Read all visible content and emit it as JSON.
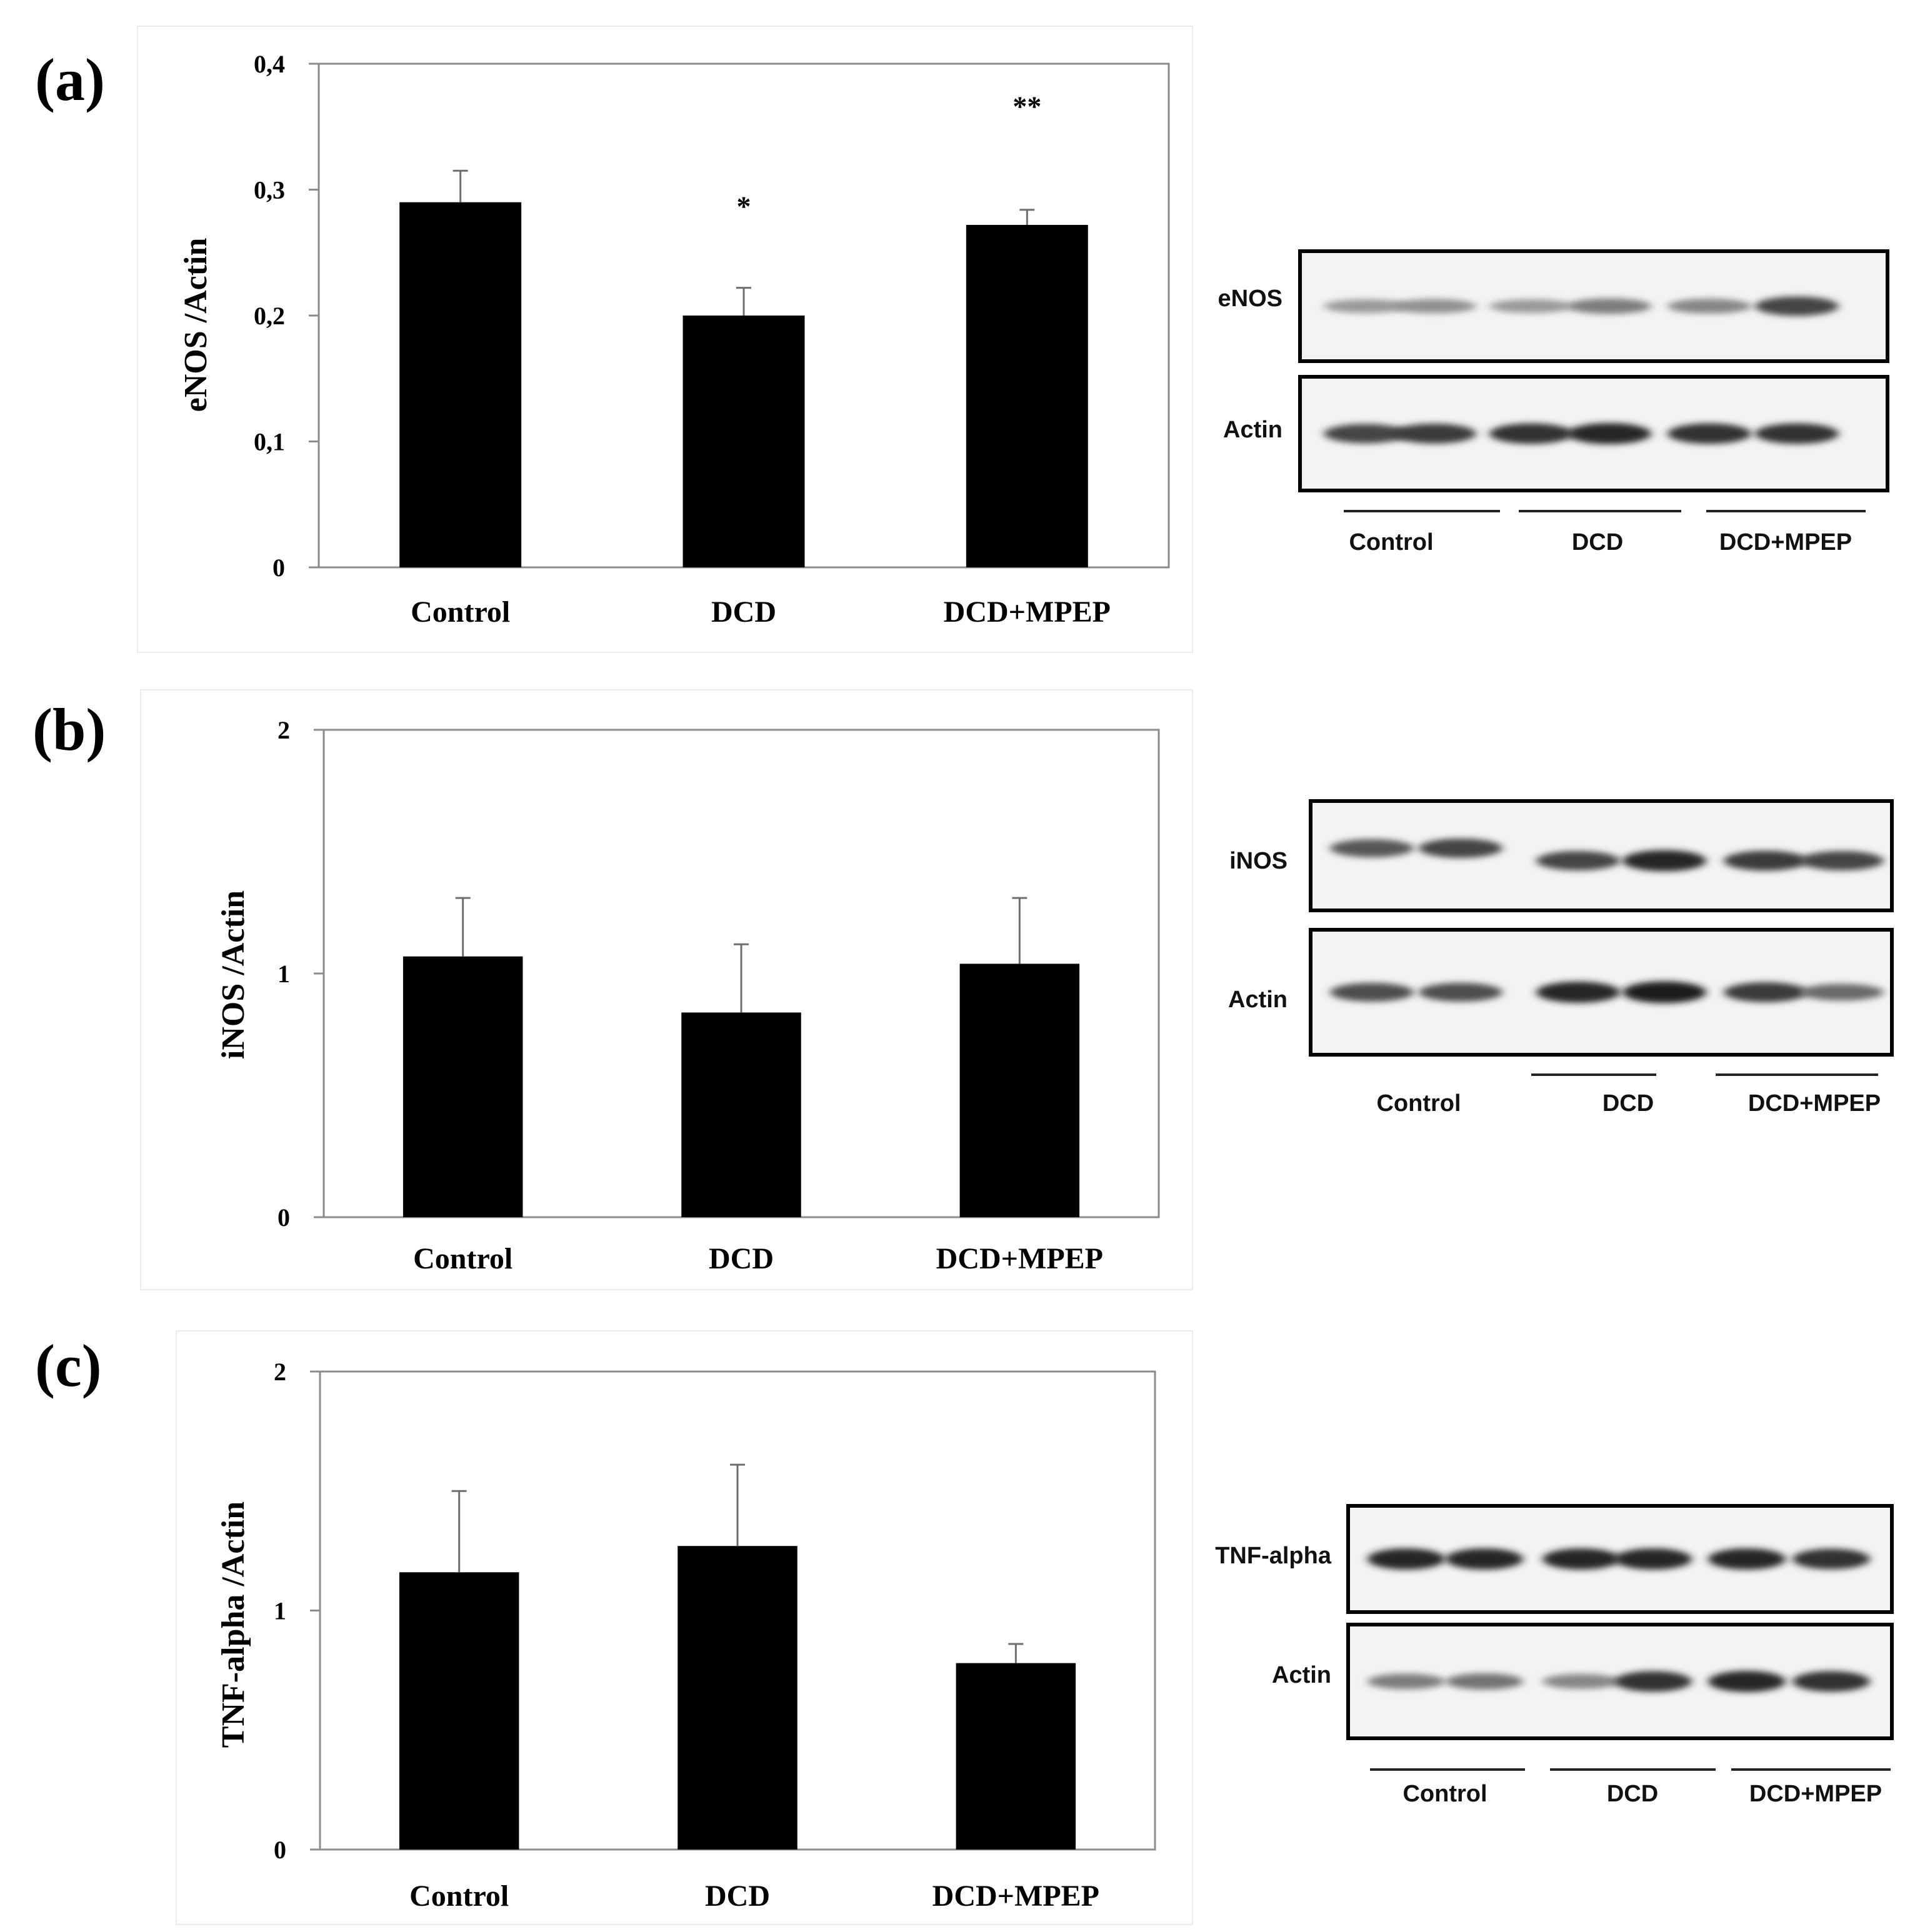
{
  "chart_data": [
    {
      "type": "bar",
      "panel": "(a)",
      "categories": [
        "Control",
        "DCD",
        "DCD+MPEP"
      ],
      "values": [
        0.29,
        0.2,
        0.272
      ],
      "errors": [
        0.025,
        0.022,
        0.012
      ],
      "significance": [
        "",
        "*",
        "**"
      ],
      "ylabel": "eNOS /Actin",
      "ylim": [
        0,
        0.4
      ],
      "yticks": [
        "0",
        "0,1",
        "0,2",
        "0,3",
        "0,4"
      ],
      "bar_color": "#000000",
      "blot": {
        "rows": [
          "eNOS",
          "Actin"
        ],
        "groups": [
          "Control",
          "DCD",
          "DCD+MPEP"
        ],
        "lane_intensity": [
          [
            0.3,
            0.35,
            0.3,
            0.45,
            0.4,
            0.75
          ],
          [
            0.75,
            0.8,
            0.85,
            0.9,
            0.85,
            0.85
          ]
        ]
      }
    },
    {
      "type": "bar",
      "panel": "(b)",
      "categories": [
        "Control",
        "DCD",
        "DCD+MPEP"
      ],
      "values": [
        1.07,
        0.84,
        1.04
      ],
      "errors": [
        0.24,
        0.28,
        0.27
      ],
      "significance": [
        "",
        "",
        ""
      ],
      "ylabel": "iNOS /Actin",
      "ylim": [
        0,
        2
      ],
      "yticks": [
        "0",
        "1",
        "2"
      ],
      "bar_color": "#000000",
      "blot": {
        "rows": [
          "iNOS",
          "Actin"
        ],
        "groups": [
          "Control",
          "DCD",
          "DCD+MPEP"
        ],
        "lane_intensity": [
          [
            0.65,
            0.75,
            0.75,
            0.9,
            0.8,
            0.75
          ],
          [
            0.7,
            0.7,
            0.9,
            0.95,
            0.8,
            0.55
          ]
        ]
      }
    },
    {
      "type": "bar",
      "panel": "(c)",
      "categories": [
        "Control",
        "DCD",
        "DCD+MPEP"
      ],
      "values": [
        1.16,
        1.27,
        0.78
      ],
      "errors": [
        0.34,
        0.34,
        0.08
      ],
      "significance": [
        "",
        "",
        ""
      ],
      "ylabel": "TNF-alpha /Actin",
      "ylim": [
        0,
        2
      ],
      "yticks": [
        "0",
        "1",
        "2"
      ],
      "bar_color": "#000000",
      "blot": {
        "rows": [
          "TNF-alpha",
          "Actin"
        ],
        "groups": [
          "Control",
          "DCD",
          "DCD+MPEP"
        ],
        "lane_intensity": [
          [
            0.9,
            0.9,
            0.9,
            0.9,
            0.9,
            0.85
          ],
          [
            0.45,
            0.5,
            0.4,
            0.85,
            0.9,
            0.85
          ]
        ]
      }
    }
  ]
}
